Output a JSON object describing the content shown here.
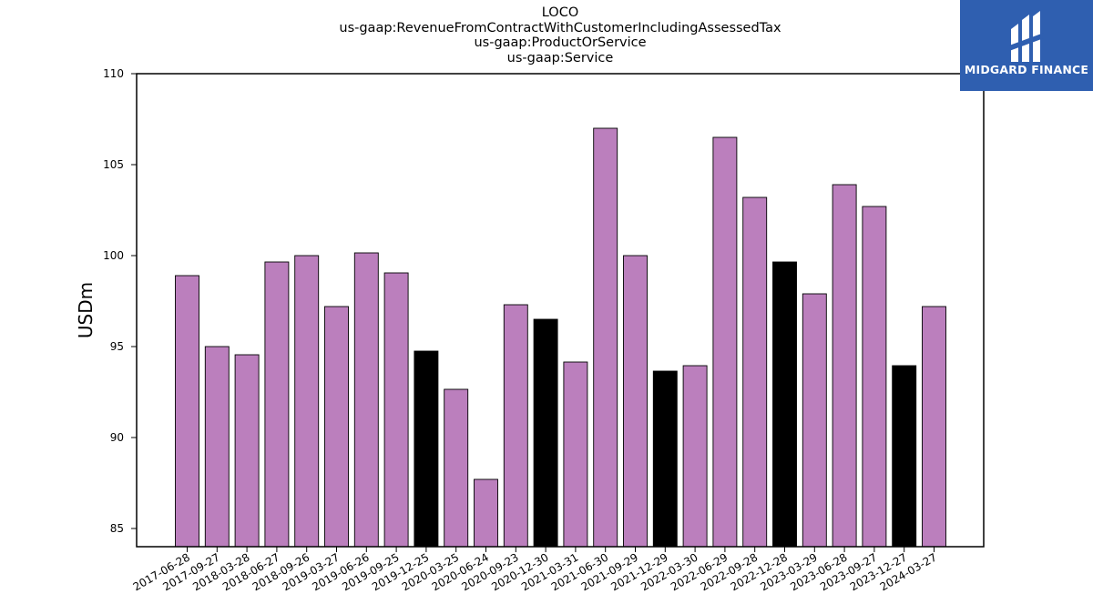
{
  "logo": {
    "text": "MIDGARD FINANCE",
    "icon": "midgard-logo-icon",
    "background": "#2f5fb0"
  },
  "chart_data": {
    "type": "bar",
    "title_lines": [
      "LOCO",
      "us-gaap:RevenueFromContractWithCustomerIncludingAssessedTax",
      "us-gaap:ProductOrService",
      "us-gaap:Service"
    ],
    "ylabel": "USDm",
    "xlabel": "",
    "ylim": [
      84,
      110
    ],
    "yticks": [
      85,
      90,
      95,
      100,
      105,
      110
    ],
    "grid": false,
    "colors": {
      "default": "#bb7fbd",
      "highlight": "#000000"
    },
    "categories": [
      "2017-06-28",
      "2017-09-27",
      "2018-03-28",
      "2018-06-27",
      "2018-09-26",
      "2019-03-27",
      "2019-06-26",
      "2019-09-25",
      "2019-12-25",
      "2020-03-25",
      "2020-06-24",
      "2020-09-23",
      "2020-12-30",
      "2021-03-31",
      "2021-06-30",
      "2021-09-29",
      "2021-12-29",
      "2022-03-30",
      "2022-06-29",
      "2022-09-28",
      "2022-12-28",
      "2023-03-29",
      "2023-06-28",
      "2023-09-27",
      "2023-12-27",
      "2024-03-27"
    ],
    "values": [
      98.9,
      95.0,
      94.55,
      99.65,
      100.0,
      97.2,
      100.15,
      99.05,
      94.75,
      92.65,
      87.7,
      97.3,
      96.5,
      94.15,
      107.0,
      100.0,
      93.65,
      93.95,
      106.5,
      103.2,
      99.65,
      97.9,
      103.9,
      102.7,
      93.95,
      97.2
    ],
    "highlight": [
      false,
      false,
      false,
      false,
      false,
      false,
      false,
      false,
      true,
      false,
      false,
      false,
      true,
      false,
      false,
      false,
      true,
      false,
      false,
      false,
      true,
      false,
      false,
      false,
      true,
      false
    ]
  }
}
